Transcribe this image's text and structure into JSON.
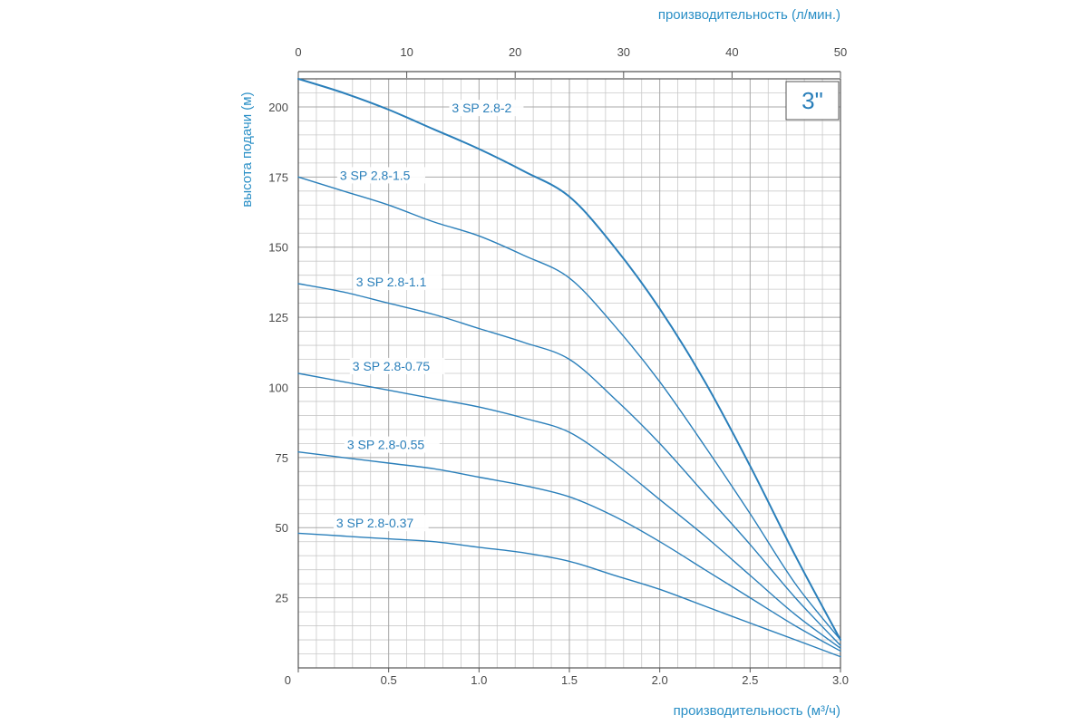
{
  "chart_data": {
    "type": "line",
    "badge": "3\"",
    "title": "",
    "xlabel_top": "производительность (л/мин.)",
    "xlabel_bottom": "производительность (м³/ч)",
    "ylabel": "высота подачи (м)",
    "xlim": [
      0,
      3.0
    ],
    "ylim": [
      0,
      210
    ],
    "x_ticks_bottom": [
      "0",
      "0.5",
      "1.0",
      "1.5",
      "2.0",
      "2.5",
      "3.0"
    ],
    "x_ticks_top": [
      "0",
      "10",
      "20",
      "30",
      "40",
      "50"
    ],
    "y_ticks": [
      "25",
      "50",
      "75",
      "100",
      "125",
      "150",
      "175",
      "200"
    ],
    "grid": true,
    "line_color": "#2a7fba",
    "series": [
      {
        "name": "3 SP 2.8-2",
        "x": [
          0,
          0.25,
          0.5,
          0.75,
          1.0,
          1.25,
          1.5,
          1.75,
          2.0,
          2.25,
          2.5,
          2.75,
          3.0
        ],
        "y": [
          210,
          205,
          199,
          192,
          185,
          177,
          168,
          150,
          128,
          102,
          72,
          40,
          10
        ]
      },
      {
        "name": "3 SP 2.8-1.5",
        "x": [
          0,
          0.25,
          0.5,
          0.75,
          1.0,
          1.25,
          1.5,
          1.75,
          2.0,
          2.25,
          2.5,
          2.75,
          3.0
        ],
        "y": [
          175,
          170,
          165,
          159,
          154,
          147,
          139,
          122,
          102,
          79,
          55,
          30,
          10
        ]
      },
      {
        "name": "3 SP 2.8-1.1",
        "x": [
          0,
          0.25,
          0.5,
          0.75,
          1.0,
          1.25,
          1.5,
          1.75,
          2.0,
          2.25,
          2.5,
          2.75,
          3.0
        ],
        "y": [
          137,
          134,
          130,
          126,
          121,
          116,
          110,
          96,
          80,
          62,
          44,
          25,
          8
        ]
      },
      {
        "name": "3 SP 2.8-0.75",
        "x": [
          0,
          0.25,
          0.5,
          0.75,
          1.0,
          1.25,
          1.5,
          1.75,
          2.0,
          2.25,
          2.5,
          2.75,
          3.0
        ],
        "y": [
          105,
          102,
          99,
          96,
          93,
          89,
          84,
          73,
          60,
          47,
          33,
          19,
          7
        ]
      },
      {
        "name": "3 SP 2.8-0.55",
        "x": [
          0,
          0.25,
          0.5,
          0.75,
          1.0,
          1.25,
          1.5,
          1.75,
          2.0,
          2.25,
          2.5,
          2.75,
          3.0
        ],
        "y": [
          77,
          75,
          73,
          71,
          68,
          65,
          61,
          54,
          45,
          35,
          25,
          15,
          6
        ]
      },
      {
        "name": "3 SP 2.8-0.37",
        "x": [
          0,
          0.25,
          0.5,
          0.75,
          1.0,
          1.25,
          1.5,
          1.75,
          2.0,
          2.25,
          2.5,
          2.75,
          3.0
        ],
        "y": [
          48,
          47,
          46,
          45,
          43,
          41,
          38,
          33,
          28,
          22,
          16,
          10,
          4
        ]
      }
    ],
    "series_label_anchor": [
      {
        "x": 0.85,
        "y": 198
      },
      {
        "x": 0.23,
        "y": 174
      },
      {
        "x": 0.32,
        "y": 136
      },
      {
        "x": 0.3,
        "y": 106
      },
      {
        "x": 0.27,
        "y": 78
      },
      {
        "x": 0.21,
        "y": 50
      }
    ]
  }
}
